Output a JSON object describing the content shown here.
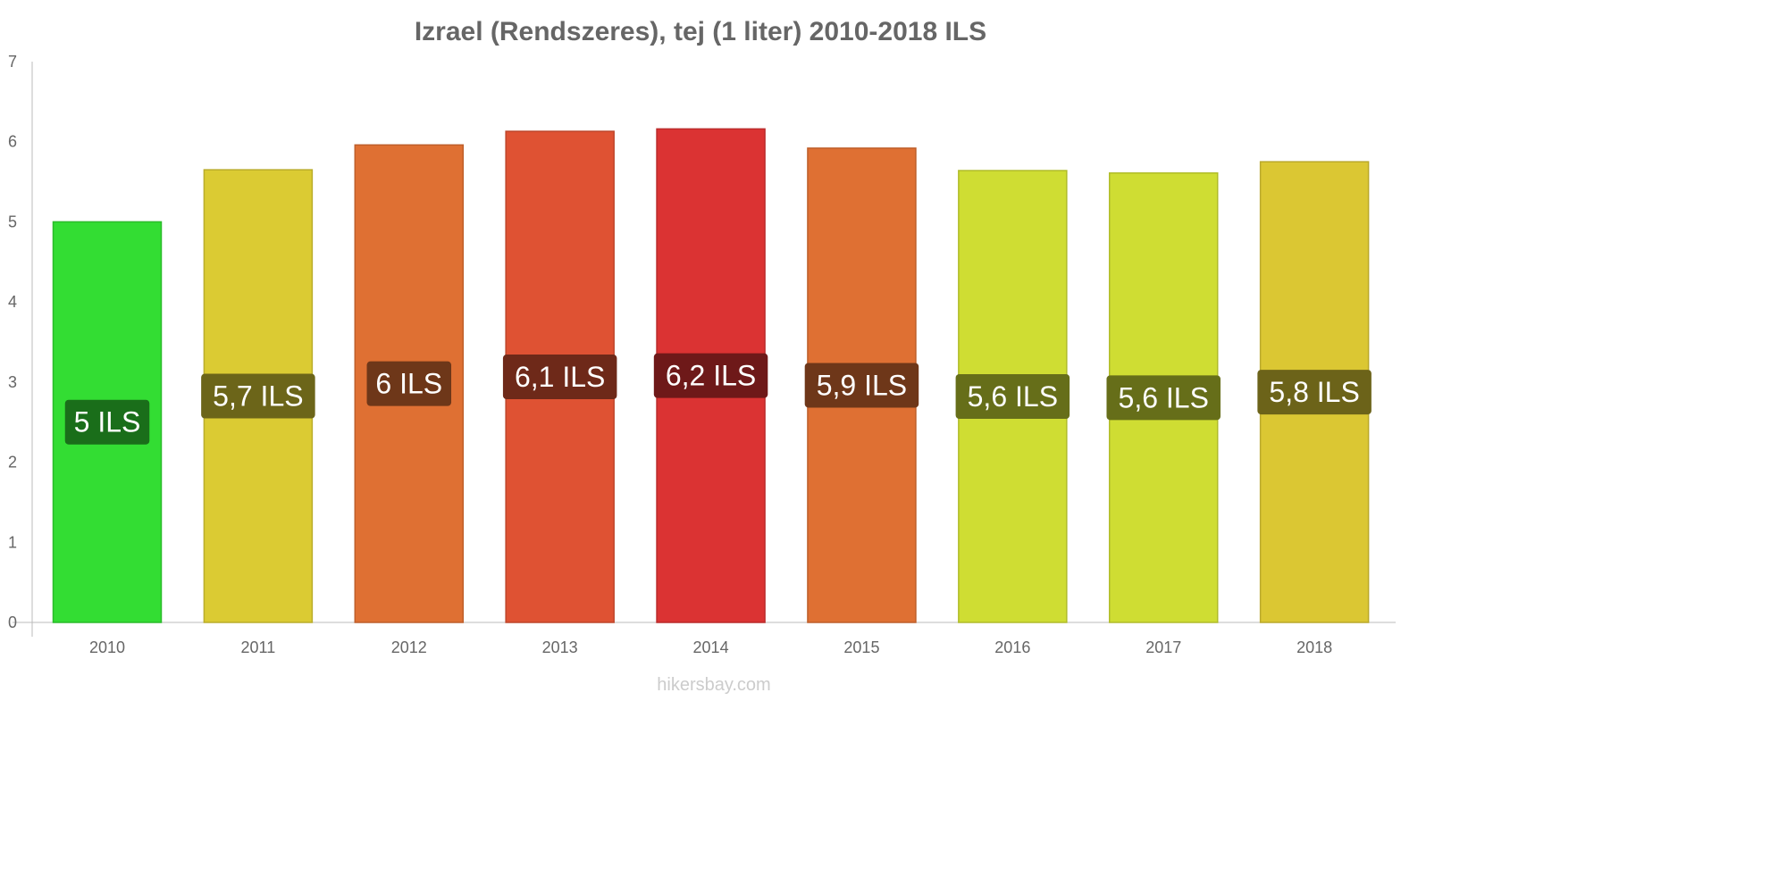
{
  "chart_data": {
    "type": "bar",
    "title": "Izrael (Rendszeres), tej (1 liter) 2010-2018 ILS",
    "xlabel": "",
    "ylabel": "",
    "ylim": [
      0,
      7
    ],
    "y_ticks": [
      "0",
      "1",
      "2",
      "3",
      "4",
      "5",
      "6",
      "7"
    ],
    "categories": [
      "2010",
      "2011",
      "2012",
      "2013",
      "2014",
      "2015",
      "2016",
      "2017",
      "2018"
    ],
    "values": [
      5.0,
      5.65,
      5.96,
      6.13,
      6.16,
      5.92,
      5.64,
      5.61,
      5.75
    ],
    "value_labels": [
      "5 ILS",
      "5,7 ILS",
      "6 ILS",
      "6,1 ILS",
      "6,2 ILS",
      "5,9 ILS",
      "5,6 ILS",
      "5,6 ILS",
      "5,8 ILS"
    ],
    "bar_colors": [
      "#33dd33",
      "#dbcb33",
      "#df7033",
      "#df5233",
      "#db3333",
      "#df7033",
      "#cfdd33",
      "#cfdd33",
      "#dbc733"
    ],
    "label_colors": [
      "#1a6e1a",
      "#6c6519",
      "#6e3719",
      "#6e2919",
      "#6e1919",
      "#6e3719",
      "#666e19",
      "#666e19",
      "#6c6319"
    ],
    "grid": false,
    "legend": "none"
  },
  "footer": "hikersbay.com"
}
